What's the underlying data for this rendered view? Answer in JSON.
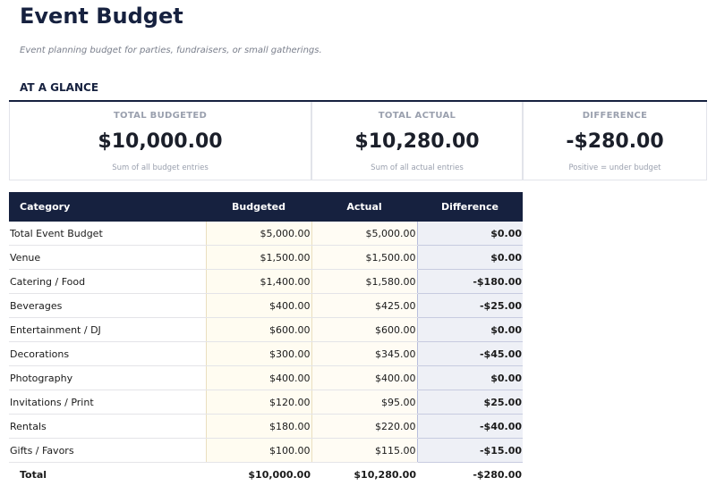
{
  "header": {
    "title": "Event Budget",
    "subtitle": "Event planning budget for parties, fundraisers, or small gatherings."
  },
  "glance": {
    "heading": "AT A GLANCE",
    "cards": [
      {
        "label": "TOTAL BUDGETED",
        "value": "$10,000.00",
        "note": "Sum of all budget entries"
      },
      {
        "label": "TOTAL ACTUAL",
        "value": "$10,280.00",
        "note": "Sum of all actual entries"
      },
      {
        "label": "DIFFERENCE",
        "value": "-$280.00",
        "note": "Positive = under budget"
      }
    ]
  },
  "table": {
    "columns": [
      "Category",
      "Budgeted",
      "Actual",
      "Difference"
    ],
    "rows": [
      [
        "Total Event Budget",
        "$5,000.00",
        "$5,000.00",
        "$0.00"
      ],
      [
        "Venue",
        "$1,500.00",
        "$1,500.00",
        "$0.00"
      ],
      [
        "Catering / Food",
        "$1,400.00",
        "$1,580.00",
        "-$180.00"
      ],
      [
        "Beverages",
        "$400.00",
        "$425.00",
        "-$25.00"
      ],
      [
        "Entertainment / DJ",
        "$600.00",
        "$600.00",
        "$0.00"
      ],
      [
        "Decorations",
        "$300.00",
        "$345.00",
        "-$45.00"
      ],
      [
        "Photography",
        "$400.00",
        "$400.00",
        "$0.00"
      ],
      [
        "Invitations / Print",
        "$120.00",
        "$95.00",
        "$25.00"
      ],
      [
        "Rentals",
        "$180.00",
        "$220.00",
        "-$40.00"
      ],
      [
        "Gifts / Favors",
        "$100.00",
        "$115.00",
        "-$15.00"
      ]
    ],
    "total": [
      "Total",
      "$10,000.00",
      "$10,280.00",
      "-$280.00"
    ]
  }
}
